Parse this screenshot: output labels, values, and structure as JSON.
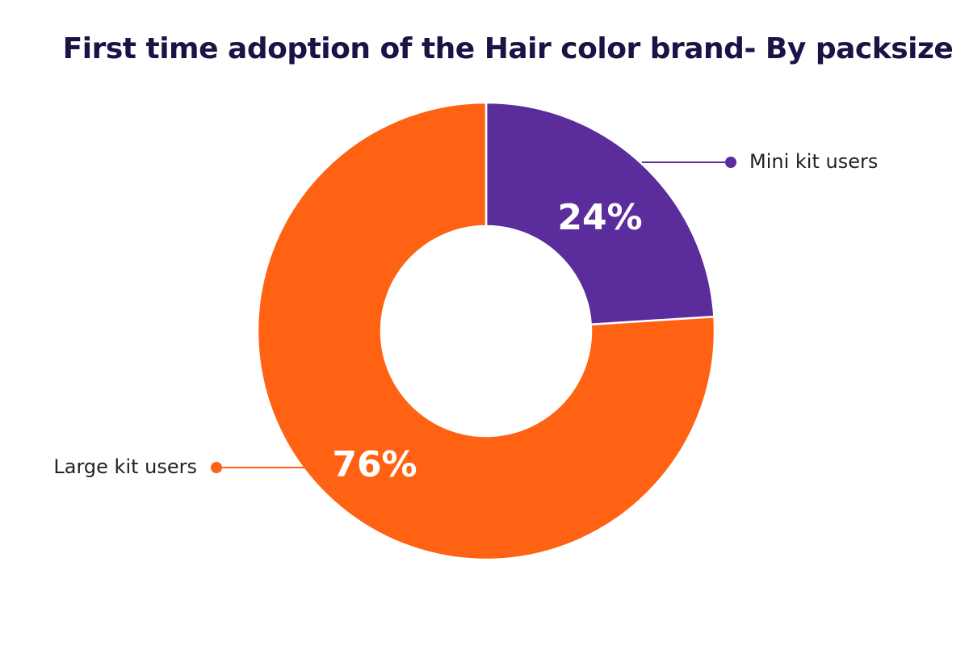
{
  "chart_data": {
    "type": "pie",
    "variant": "donut",
    "title": "First time adoption of the Hair color brand- By packsize",
    "categories": [
      "Mini kit users",
      "Large kit users"
    ],
    "values": [
      24,
      76
    ],
    "value_labels": [
      "24%",
      "76%"
    ],
    "colors": [
      "#5b2d9c",
      "#fe6212"
    ],
    "start_angle": "12 o'clock",
    "direction": "clockwise",
    "legend": "callouts"
  }
}
